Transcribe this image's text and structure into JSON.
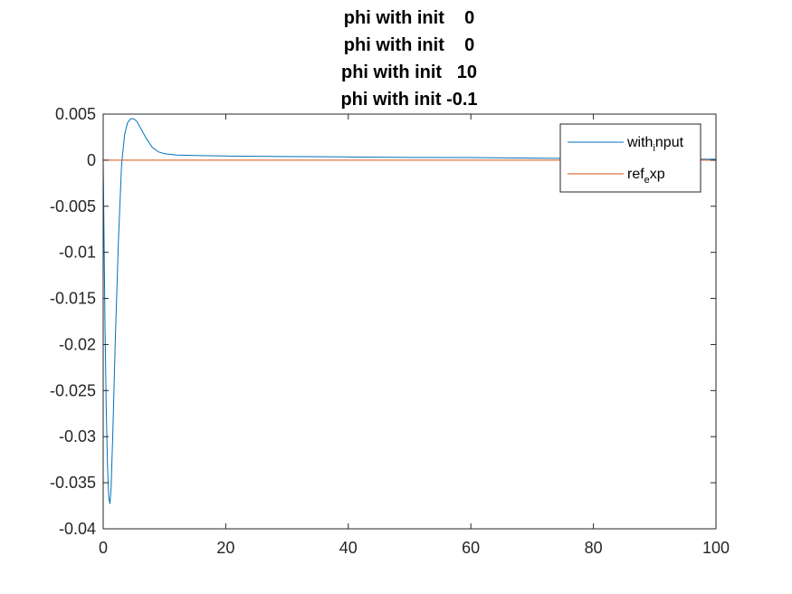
{
  "chart_data": {
    "type": "line",
    "title_lines": [
      "phi with init    0",
      "phi with init    0",
      "phi with init   10",
      "phi with init -0.1"
    ],
    "xlabel": "",
    "ylabel": "",
    "xlim": [
      0,
      100
    ],
    "ylim": [
      -0.04,
      0.005
    ],
    "x_ticks": [
      0,
      20,
      40,
      60,
      80,
      100
    ],
    "x_tick_labels": [
      "0",
      "20",
      "40",
      "60",
      "80",
      "100"
    ],
    "y_ticks": [
      0.005,
      0,
      -0.005,
      -0.01,
      -0.015,
      -0.02,
      -0.025,
      -0.03,
      -0.035,
      -0.04
    ],
    "y_tick_labels": [
      "0.005",
      "0",
      "-0.005",
      "-0.01",
      "-0.015",
      "-0.02",
      "-0.025",
      "-0.03",
      "-0.035",
      "-0.04"
    ],
    "grid": false,
    "legend_position": "top-right",
    "series": [
      {
        "name": "with_input",
        "legend_main": "with",
        "legend_sub": "i",
        "legend_rest": "nput",
        "color": "#0072bd",
        "x": [
          0,
          0.15,
          0.3,
          0.5,
          0.7,
          0.9,
          1.1,
          1.3,
          1.6,
          2.0,
          2.5,
          3.0,
          3.5,
          4.0,
          4.5,
          5.0,
          5.5,
          6.0,
          7.0,
          8.0,
          9.0,
          10.0,
          12.0,
          15.0,
          20.0,
          30.0,
          40.0,
          50.0,
          60.0,
          70.0,
          80.0,
          90.0,
          100.0
        ],
        "y": [
          0.0,
          -0.009,
          -0.018,
          -0.027,
          -0.033,
          -0.0365,
          -0.0373,
          -0.0355,
          -0.029,
          -0.019,
          -0.0085,
          -0.0005,
          0.0028,
          0.0041,
          0.0045,
          0.0045,
          0.0042,
          0.0036,
          0.0024,
          0.0014,
          0.0009,
          0.0007,
          0.00055,
          0.0005,
          0.00045,
          0.0004,
          0.00035,
          0.0003,
          0.00028,
          0.00022,
          0.00018,
          0.00012,
          0.0001
        ]
      },
      {
        "name": "ref_exp",
        "legend_main": "ref",
        "legend_sub": "e",
        "legend_rest": "xp",
        "color": "#d95319",
        "x": [
          0,
          100
        ],
        "y": [
          0,
          0
        ]
      }
    ]
  }
}
